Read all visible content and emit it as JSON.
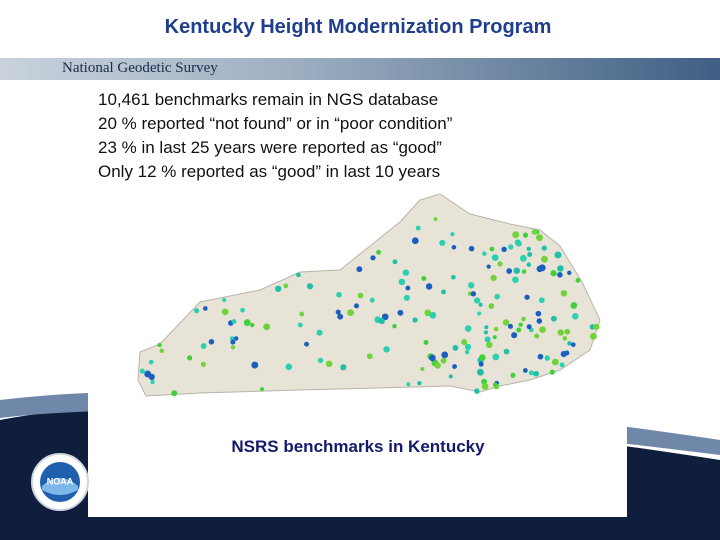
{
  "header": {
    "title": "Kentucky Height Modernization Program"
  },
  "banner": {
    "text": "National Geodetic Survey"
  },
  "bullets": [
    "10,461 benchmarks remain in NGS database",
    "20 % reported “not found” or in “poor condition”",
    "23 % in last 25 years were reported as “good”",
    "Only 12 % reported as “good” in last 10 years"
  ],
  "map": {
    "caption": "NSRS benchmarks in Kentucky"
  },
  "logo": {
    "label": "NOAA"
  }
}
